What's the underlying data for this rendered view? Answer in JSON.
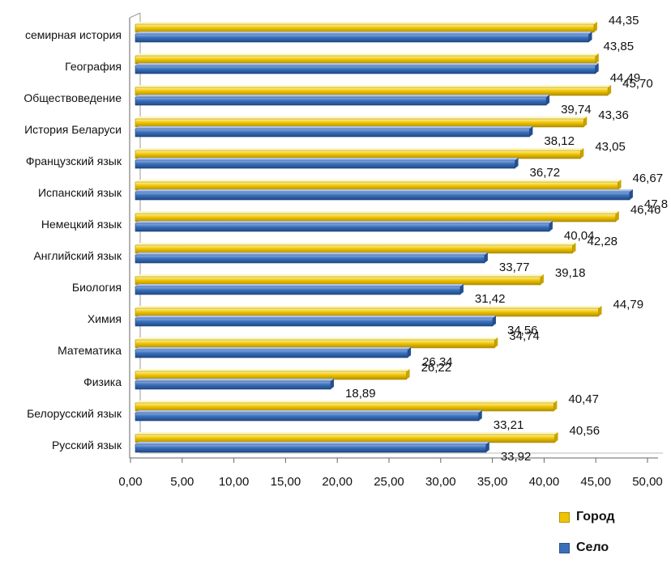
{
  "chart_data": {
    "type": "bar",
    "orientation": "horizontal",
    "categories": [
      "семирная история",
      "География",
      "Обществоведение",
      "История Беларуси",
      "Французский язык",
      "Испанский язык",
      "Немецкий язык",
      "Английский язык",
      "Биология",
      "Химия",
      "Математика",
      "Физика",
      "Белорусский язык",
      "Русский язык"
    ],
    "series": [
      {
        "name": "Город",
        "color": "#f0c400",
        "values": [
          44.35,
          44.5,
          45.7,
          43.36,
          43.05,
          46.67,
          46.46,
          42.28,
          39.18,
          44.79,
          34.74,
          26.22,
          40.47,
          40.56
        ],
        "labels": [
          "44,35",
          "",
          "45,70",
          "43,36",
          "43,05",
          "46,67",
          "46,46",
          "42,28",
          "39,18",
          "44,79",
          "34,74",
          "26,22",
          "40,47",
          "40,56"
        ]
      },
      {
        "name": "Село",
        "color": "#3a6fb8",
        "values": [
          43.85,
          44.49,
          39.74,
          38.12,
          36.72,
          47.8,
          40.04,
          33.77,
          31.42,
          34.56,
          26.34,
          18.89,
          33.21,
          33.92
        ],
        "labels": [
          "43,85",
          "44,49",
          "39,74",
          "38,12",
          "36,72",
          "47,8",
          "40,04",
          "33,77",
          "31,42",
          "34,56",
          "26,34",
          "18,89",
          "33,21",
          "33,92"
        ]
      }
    ],
    "xlim": [
      0,
      50
    ],
    "xticks": [
      0,
      5,
      10,
      15,
      20,
      25,
      30,
      35,
      40,
      45,
      50
    ],
    "xtick_labels": [
      "0,00",
      "5,00",
      "10,00",
      "15,00",
      "20,00",
      "25,00",
      "30,00",
      "35,00",
      "40,00",
      "45,00",
      "50,00"
    ],
    "title": "",
    "xlabel": "",
    "ylabel": "",
    "grid": false,
    "legend_position": "bottom-right"
  }
}
